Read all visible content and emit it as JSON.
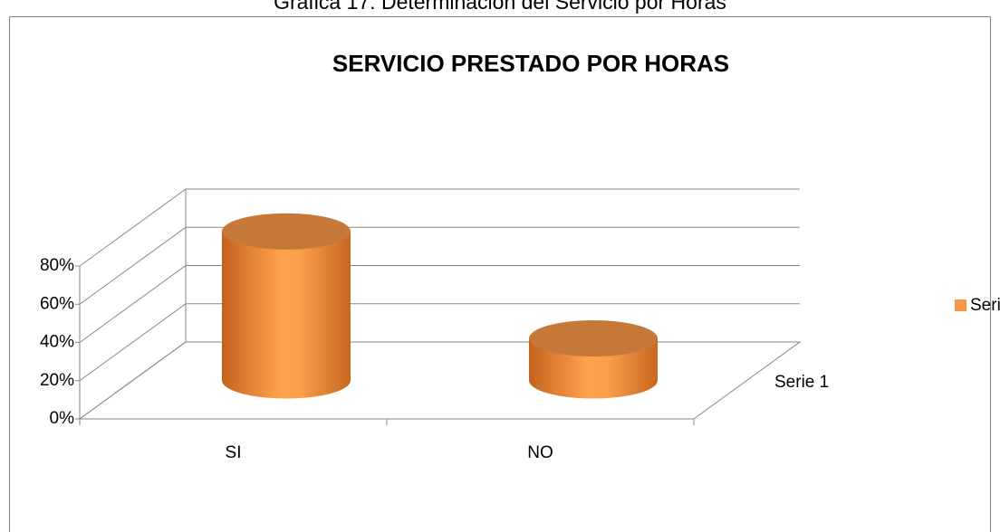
{
  "caption": "Gráfica 17: Determinación del Servicio por Horas",
  "chart_data": {
    "type": "cylinder3d",
    "title": "SERVICIO PRESTADO POR HORAS",
    "categories": [
      "SI",
      "NO"
    ],
    "series": [
      {
        "name": "Serie 1",
        "color": "#f79646",
        "values": [
          78,
          22
        ]
      }
    ],
    "ylim": [
      0,
      80
    ],
    "yticks": [
      {
        "value": 0,
        "label": "0%"
      },
      {
        "value": 20,
        "label": "20%"
      },
      {
        "value": 40,
        "label": "40%"
      },
      {
        "value": 60,
        "label": "60%"
      },
      {
        "value": 80,
        "label": "80%"
      }
    ],
    "grid": true,
    "legend": "right"
  }
}
